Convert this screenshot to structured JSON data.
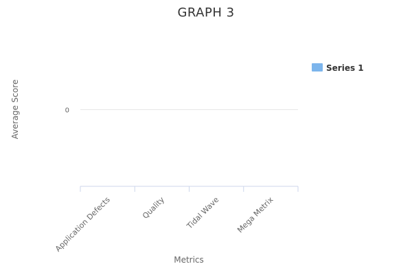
{
  "chart_data": {
    "type": "bar",
    "title": "GRAPH 3",
    "xlabel": "Metrics",
    "ylabel": "Average Score",
    "categories": [
      "Application Defects",
      "Quality",
      "Tidal Wave",
      "Mega Metrix"
    ],
    "series": [
      {
        "name": "Series 1",
        "values": [
          0,
          0,
          0,
          0
        ],
        "color": "#7cb5ec"
      }
    ],
    "y_ticks": [
      "0"
    ],
    "ylim": [
      -1,
      1
    ],
    "grid": true,
    "legend_position": "right"
  },
  "colors": {
    "title": "#333333",
    "axis_text": "#666666",
    "gridline": "#e6e6e6",
    "x_axis_line": "#ccd6eb"
  }
}
